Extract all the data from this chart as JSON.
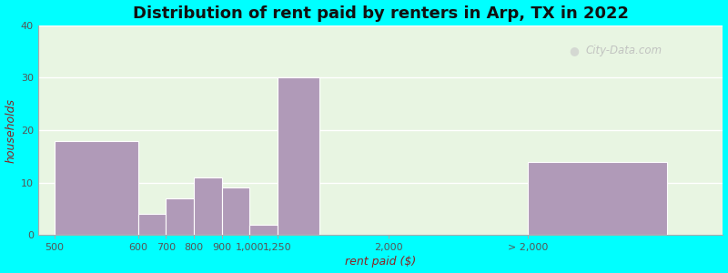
{
  "title": "Distribution of rent paid by renters in Arp, TX in 2022",
  "xlabel": "rent paid ($)",
  "ylabel": "households",
  "bar_labels": [
    "500",
    "600",
    "700",
    "800",
    "900",
    "1,000",
    "1,250",
    "2,000",
    "> 2,000"
  ],
  "bar_values": [
    18,
    4,
    7,
    11,
    9,
    2,
    30,
    0,
    14
  ],
  "bar_color": "#b09ab8",
  "ylim": [
    0,
    40
  ],
  "yticks": [
    0,
    10,
    20,
    30,
    40
  ],
  "bg_color": "#e8f5e2",
  "outer_bg": "#00ffff",
  "title_fontsize": 13,
  "axis_label_fontsize": 9,
  "tick_fontsize": 8,
  "watermark": "City-Data.com"
}
